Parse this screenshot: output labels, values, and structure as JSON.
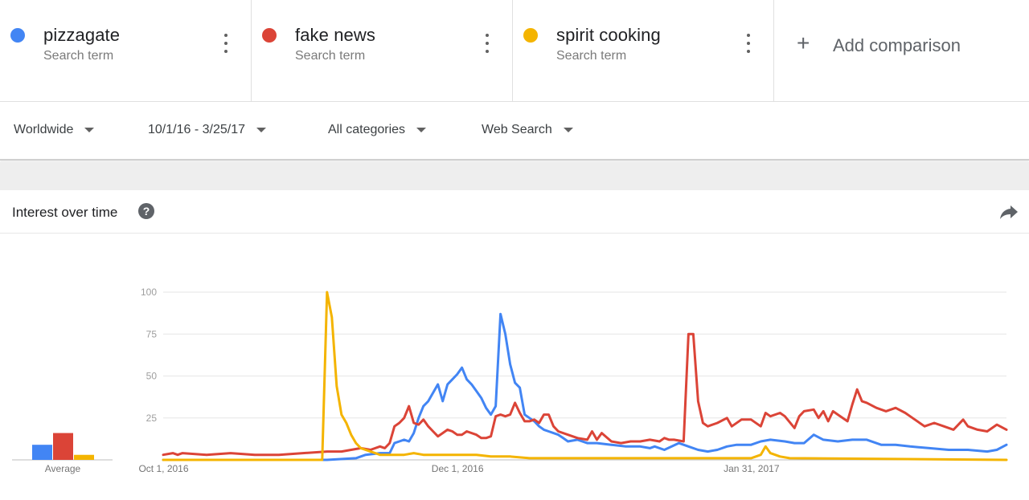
{
  "terms": [
    {
      "name": "pizzagate",
      "sub": "Search term",
      "color": "#4285F4"
    },
    {
      "name": "fake news",
      "sub": "Search term",
      "color": "#DB4437"
    },
    {
      "name": "spirit cooking",
      "sub": "Search term",
      "color": "#F4B400"
    }
  ],
  "add_comparison": {
    "label": "Add comparison",
    "icon": "plus-icon"
  },
  "filters": {
    "region": "Worldwide",
    "date_range": "10/1/16 - 3/25/17",
    "category": "All categories",
    "search_type": "Web Search"
  },
  "card": {
    "title": "Interest over time",
    "help_icon": "help-icon",
    "share_icon": "share-icon",
    "help_glyph": "?"
  },
  "chart_data": {
    "type": "line",
    "ylim": [
      0,
      100
    ],
    "yticks": [
      25,
      50,
      75,
      100
    ],
    "x_range": [
      "2016-10-01",
      "2017-03-25"
    ],
    "xticks": [
      {
        "label": "Oct 1, 2016",
        "date": "2016-10-01"
      },
      {
        "label": "Dec 1, 2016",
        "date": "2016-12-01"
      },
      {
        "label": "Jan 31, 2017",
        "date": "2017-01-31"
      }
    ],
    "average": {
      "label": "Average",
      "values": {
        "pizzagate": 9,
        "fake news": 16,
        "spirit cooking": 3
      }
    },
    "series": [
      {
        "name": "pizzagate",
        "color": "#4285F4",
        "points": [
          [
            "2016-10-01",
            0
          ],
          [
            "2016-11-04",
            0
          ],
          [
            "2016-11-10",
            1
          ],
          [
            "2016-11-12",
            3
          ],
          [
            "2016-11-15",
            4
          ],
          [
            "2016-11-17",
            4
          ],
          [
            "2016-11-18",
            10
          ],
          [
            "2016-11-19",
            11
          ],
          [
            "2016-11-20",
            12
          ],
          [
            "2016-11-21",
            11
          ],
          [
            "2016-11-22",
            16
          ],
          [
            "2016-11-23",
            25
          ],
          [
            "2016-11-24",
            32
          ],
          [
            "2016-11-25",
            35
          ],
          [
            "2016-11-26",
            40
          ],
          [
            "2016-11-27",
            45
          ],
          [
            "2016-11-28",
            35
          ],
          [
            "2016-11-29",
            45
          ],
          [
            "2016-11-30",
            48
          ],
          [
            "2016-12-01",
            51
          ],
          [
            "2016-12-02",
            55
          ],
          [
            "2016-12-03",
            48
          ],
          [
            "2016-12-04",
            45
          ],
          [
            "2016-12-05",
            41
          ],
          [
            "2016-12-06",
            37
          ],
          [
            "2016-12-07",
            31
          ],
          [
            "2016-12-08",
            27
          ],
          [
            "2016-12-09",
            32
          ],
          [
            "2016-12-10",
            87
          ],
          [
            "2016-12-11",
            75
          ],
          [
            "2016-12-12",
            57
          ],
          [
            "2016-12-13",
            46
          ],
          [
            "2016-12-14",
            43
          ],
          [
            "2016-12-15",
            27
          ],
          [
            "2016-12-16",
            25
          ],
          [
            "2016-12-17",
            23
          ],
          [
            "2016-12-18",
            20
          ],
          [
            "2016-12-19",
            18
          ],
          [
            "2016-12-20",
            17
          ],
          [
            "2016-12-22",
            15
          ],
          [
            "2016-12-23",
            13
          ],
          [
            "2016-12-24",
            11
          ],
          [
            "2016-12-26",
            12
          ],
          [
            "2016-12-28",
            10
          ],
          [
            "2016-12-30",
            10
          ],
          [
            "2017-01-02",
            9
          ],
          [
            "2017-01-05",
            8
          ],
          [
            "2017-01-08",
            8
          ],
          [
            "2017-01-10",
            7
          ],
          [
            "2017-01-11",
            8
          ],
          [
            "2017-01-13",
            6
          ],
          [
            "2017-01-16",
            10
          ],
          [
            "2017-01-18",
            8
          ],
          [
            "2017-01-20",
            6
          ],
          [
            "2017-01-22",
            5
          ],
          [
            "2017-01-24",
            6
          ],
          [
            "2017-01-26",
            8
          ],
          [
            "2017-01-28",
            9
          ],
          [
            "2017-01-31",
            9
          ],
          [
            "2017-02-02",
            11
          ],
          [
            "2017-02-04",
            12
          ],
          [
            "2017-02-07",
            11
          ],
          [
            "2017-02-09",
            10
          ],
          [
            "2017-02-11",
            10
          ],
          [
            "2017-02-13",
            15
          ],
          [
            "2017-02-15",
            12
          ],
          [
            "2017-02-18",
            11
          ],
          [
            "2017-02-21",
            12
          ],
          [
            "2017-02-24",
            12
          ],
          [
            "2017-02-27",
            9
          ],
          [
            "2017-03-02",
            9
          ],
          [
            "2017-03-05",
            8
          ],
          [
            "2017-03-09",
            7
          ],
          [
            "2017-03-13",
            6
          ],
          [
            "2017-03-17",
            6
          ],
          [
            "2017-03-21",
            5
          ],
          [
            "2017-03-23",
            6
          ],
          [
            "2017-03-25",
            9
          ]
        ]
      },
      {
        "name": "fake news",
        "color": "#DB4437",
        "points": [
          [
            "2016-10-01",
            3
          ],
          [
            "2016-10-03",
            4
          ],
          [
            "2016-10-04",
            3
          ],
          [
            "2016-10-05",
            4
          ],
          [
            "2016-10-10",
            3
          ],
          [
            "2016-10-15",
            4
          ],
          [
            "2016-10-20",
            3
          ],
          [
            "2016-10-25",
            3
          ],
          [
            "2016-10-30",
            4
          ],
          [
            "2016-11-04",
            5
          ],
          [
            "2016-11-07",
            5
          ],
          [
            "2016-11-09",
            6
          ],
          [
            "2016-11-11",
            7
          ],
          [
            "2016-11-13",
            6
          ],
          [
            "2016-11-15",
            8
          ],
          [
            "2016-11-16",
            7
          ],
          [
            "2016-11-17",
            10
          ],
          [
            "2016-11-18",
            20
          ],
          [
            "2016-11-19",
            22
          ],
          [
            "2016-11-20",
            25
          ],
          [
            "2016-11-21",
            32
          ],
          [
            "2016-11-22",
            22
          ],
          [
            "2016-11-23",
            21
          ],
          [
            "2016-11-24",
            24
          ],
          [
            "2016-11-25",
            20
          ],
          [
            "2016-11-26",
            17
          ],
          [
            "2016-11-27",
            14
          ],
          [
            "2016-11-28",
            16
          ],
          [
            "2016-11-29",
            18
          ],
          [
            "2016-11-30",
            17
          ],
          [
            "2016-12-01",
            15
          ],
          [
            "2016-12-02",
            15
          ],
          [
            "2016-12-03",
            17
          ],
          [
            "2016-12-05",
            15
          ],
          [
            "2016-12-06",
            13
          ],
          [
            "2016-12-07",
            13
          ],
          [
            "2016-12-08",
            14
          ],
          [
            "2016-12-09",
            26
          ],
          [
            "2016-12-10",
            27
          ],
          [
            "2016-12-11",
            26
          ],
          [
            "2016-12-12",
            27
          ],
          [
            "2016-12-13",
            34
          ],
          [
            "2016-12-14",
            28
          ],
          [
            "2016-12-15",
            23
          ],
          [
            "2016-12-16",
            23
          ],
          [
            "2016-12-17",
            24
          ],
          [
            "2016-12-18",
            22
          ],
          [
            "2016-12-19",
            27
          ],
          [
            "2016-12-20",
            27
          ],
          [
            "2016-12-21",
            20
          ],
          [
            "2016-12-22",
            17
          ],
          [
            "2016-12-24",
            15
          ],
          [
            "2016-12-26",
            13
          ],
          [
            "2016-12-28",
            12
          ],
          [
            "2016-12-29",
            17
          ],
          [
            "2016-12-30",
            12
          ],
          [
            "2016-12-31",
            16
          ],
          [
            "2017-01-02",
            11
          ],
          [
            "2017-01-04",
            10
          ],
          [
            "2017-01-06",
            11
          ],
          [
            "2017-01-08",
            11
          ],
          [
            "2017-01-10",
            12
          ],
          [
            "2017-01-12",
            11
          ],
          [
            "2017-01-13",
            13
          ],
          [
            "2017-01-14",
            12
          ],
          [
            "2017-01-15",
            12
          ],
          [
            "2017-01-17",
            11
          ],
          [
            "2017-01-18",
            75
          ],
          [
            "2017-01-19",
            75
          ],
          [
            "2017-01-20",
            35
          ],
          [
            "2017-01-21",
            22
          ],
          [
            "2017-01-22",
            20
          ],
          [
            "2017-01-24",
            22
          ],
          [
            "2017-01-26",
            25
          ],
          [
            "2017-01-27",
            20
          ],
          [
            "2017-01-29",
            24
          ],
          [
            "2017-01-31",
            24
          ],
          [
            "2017-02-02",
            20
          ],
          [
            "2017-02-03",
            28
          ],
          [
            "2017-02-04",
            26
          ],
          [
            "2017-02-06",
            28
          ],
          [
            "2017-02-07",
            26
          ],
          [
            "2017-02-09",
            19
          ],
          [
            "2017-02-10",
            26
          ],
          [
            "2017-02-11",
            29
          ],
          [
            "2017-02-13",
            30
          ],
          [
            "2017-02-14",
            25
          ],
          [
            "2017-02-15",
            29
          ],
          [
            "2017-02-16",
            23
          ],
          [
            "2017-02-17",
            29
          ],
          [
            "2017-02-18",
            27
          ],
          [
            "2017-02-20",
            23
          ],
          [
            "2017-02-21",
            33
          ],
          [
            "2017-02-22",
            42
          ],
          [
            "2017-02-23",
            35
          ],
          [
            "2017-02-24",
            34
          ],
          [
            "2017-02-26",
            31
          ],
          [
            "2017-02-28",
            29
          ],
          [
            "2017-03-02",
            31
          ],
          [
            "2017-03-04",
            28
          ],
          [
            "2017-03-05",
            26
          ],
          [
            "2017-03-08",
            20
          ],
          [
            "2017-03-10",
            22
          ],
          [
            "2017-03-12",
            20
          ],
          [
            "2017-03-14",
            18
          ],
          [
            "2017-03-16",
            24
          ],
          [
            "2017-03-17",
            20
          ],
          [
            "2017-03-19",
            18
          ],
          [
            "2017-03-21",
            17
          ],
          [
            "2017-03-23",
            21
          ],
          [
            "2017-03-25",
            18
          ]
        ]
      },
      {
        "name": "spirit cooking",
        "color": "#F4B400",
        "points": [
          [
            "2016-10-01",
            0
          ],
          [
            "2016-11-03",
            0
          ],
          [
            "2016-11-04",
            100
          ],
          [
            "2016-11-05",
            85
          ],
          [
            "2016-11-06",
            44
          ],
          [
            "2016-11-07",
            27
          ],
          [
            "2016-11-08",
            22
          ],
          [
            "2016-11-09",
            15
          ],
          [
            "2016-11-10",
            10
          ],
          [
            "2016-11-11",
            7
          ],
          [
            "2016-11-12",
            6
          ],
          [
            "2016-11-13",
            5
          ],
          [
            "2016-11-14",
            4
          ],
          [
            "2016-11-15",
            3
          ],
          [
            "2016-11-17",
            3
          ],
          [
            "2016-11-20",
            3
          ],
          [
            "2016-11-22",
            4
          ],
          [
            "2016-11-24",
            3
          ],
          [
            "2016-11-26",
            3
          ],
          [
            "2016-12-05",
            3
          ],
          [
            "2016-12-08",
            2
          ],
          [
            "2016-12-12",
            2
          ],
          [
            "2016-12-16",
            1
          ],
          [
            "2016-12-31",
            1
          ],
          [
            "2017-01-31",
            1
          ],
          [
            "2017-02-02",
            3
          ],
          [
            "2017-02-03",
            8
          ],
          [
            "2017-02-04",
            4
          ],
          [
            "2017-02-06",
            2
          ],
          [
            "2017-02-08",
            1
          ],
          [
            "2017-03-25",
            0
          ]
        ]
      }
    ]
  }
}
